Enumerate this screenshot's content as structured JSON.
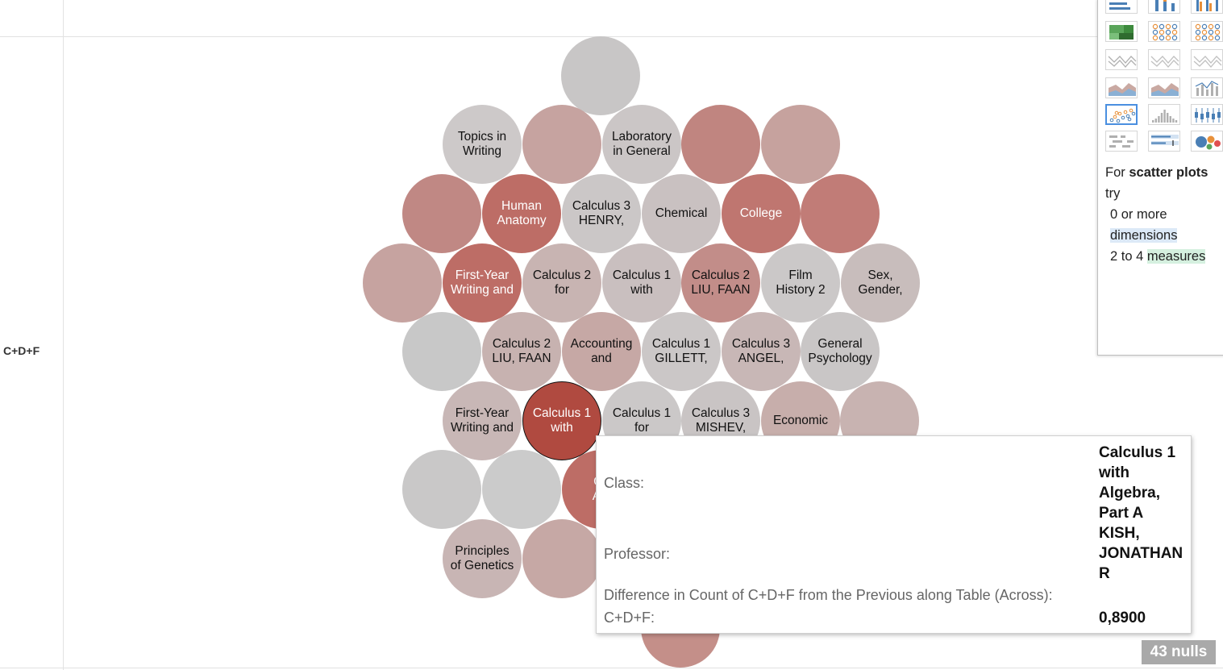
{
  "row_label": "C+D+F",
  "bubbles": [
    {
      "text": "",
      "color": "#c8c6c6"
    },
    {
      "text": "Topics in\nWriting",
      "color": "#cdc9c9"
    },
    {
      "text": "",
      "color": "#c6a3a0"
    },
    {
      "text": "Laboratory\nin General",
      "color": "#cbc6c6"
    },
    {
      "text": "",
      "color": "#c08580"
    },
    {
      "text": "",
      "color": "#c6a29e"
    },
    {
      "text": "",
      "color": "#c08884"
    },
    {
      "text": "Human\nAnatomy",
      "color": "#bd6d66"
    },
    {
      "text": "Calculus 3\nHENRY,",
      "color": "#cbc7c7"
    },
    {
      "text": "Chemical",
      "color": "#c9c1c1"
    },
    {
      "text": "College",
      "color": "#bf7670"
    },
    {
      "text": "",
      "color": "#c17c77"
    },
    {
      "text": "",
      "color": "#c6a3a0"
    },
    {
      "text": "First-Year\nWriting and",
      "color": "#bd6d66"
    },
    {
      "text": "Calculus 2\nfor",
      "color": "#c8b4b2"
    },
    {
      "text": "Calculus 1\nwith",
      "color": "#c9bfbf"
    },
    {
      "text": "Calculus 2\nLIU, FAAN",
      "color": "#c28d89"
    },
    {
      "text": "Film\nHistory 2",
      "color": "#cbc8c8"
    },
    {
      "text": "Sex,\nGender,",
      "color": "#c8bdbc"
    },
    {
      "text": "",
      "color": "#c8c8c8"
    },
    {
      "text": "Calculus 2\nLIU, FAAN",
      "color": "#c7b2b0"
    },
    {
      "text": "Accounting\nand",
      "color": "#c6a8a5"
    },
    {
      "text": "Calculus 1\nGILLETT,",
      "color": "#cbc7c7"
    },
    {
      "text": "Calculus 3\nANGEL,",
      "color": "#c8b7b6"
    },
    {
      "text": "General\nPsychology",
      "color": "#c9c6c6"
    },
    {
      "text": "First-Year\nWriting and",
      "color": "#c8b7b6"
    },
    {
      "text": "Calculus 1\nwith",
      "color": "#b04a40"
    },
    {
      "text": "Calculus 1\nfor",
      "color": "#cbc8c8"
    },
    {
      "text": "Calculus 3\nMISHEV,",
      "color": "#c9c4c4"
    },
    {
      "text": "Economic",
      "color": "#c7aeab"
    },
    {
      "text": "",
      "color": "#c8b3b1"
    },
    {
      "text": "",
      "color": "#c9c8c8"
    },
    {
      "text": "",
      "color": "#cbcbcb"
    },
    {
      "text": "Co\nAlg",
      "color": "#bd6d66"
    },
    {
      "text": "Principles\nof Genetics",
      "color": "#c8b5b4"
    },
    {
      "text": "",
      "color": "#c6a8a5"
    },
    {
      "text": "",
      "color": "#c48f89"
    }
  ],
  "show_me": {
    "hint_for": "For",
    "hint_chart": "scatter plots",
    "hint_try": "try",
    "hint_dims_count": "0 or more",
    "hint_dims": "dimensions",
    "hint_meas_count": "2 to 4",
    "hint_meas": "measures",
    "icons": [
      "horizontal-bars-icon",
      "stacked-bars-icon",
      "side-by-side-bars-icon",
      "treemap-icon",
      "circle-views-icon",
      "side-by-side-circles-icon",
      "lines-continuous-icon",
      "lines-discrete-icon",
      "dual-lines-icon",
      "area-continuous-icon",
      "area-discrete-icon",
      "dual-combination-icon",
      "scatter-plot-icon",
      "histogram-icon",
      "box-whisker-icon",
      "gantt-icon",
      "bullet-graph-icon",
      "packed-bubbles-icon"
    ]
  },
  "tooltip": {
    "class_label": "Class:",
    "professor_label": "Professor:",
    "value_lines": [
      "Calculus 1",
      "with",
      "Algebra,",
      "Part A",
      "KISH,",
      "JONATHAN",
      "R"
    ],
    "diff_label": "Difference in Count of C+D+F from the Previous along Table (Across):",
    "cdf_label": "C+D+F:",
    "cdf_value": "0,8900"
  },
  "nulls_badge": "43 nulls"
}
